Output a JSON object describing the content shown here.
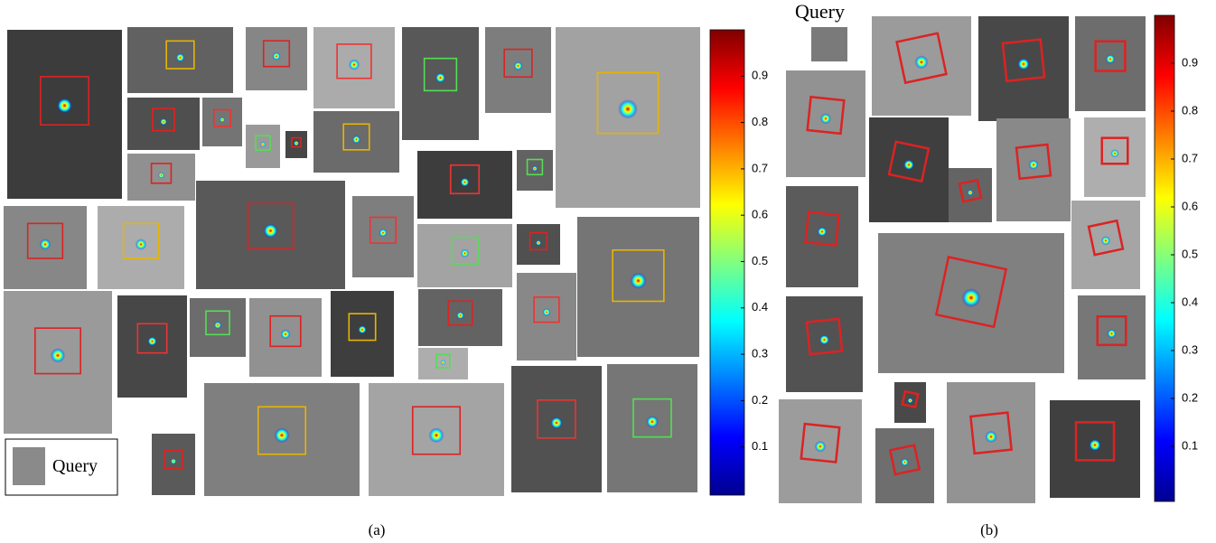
{
  "panels": [
    {
      "caption": "(a)",
      "query_label": "Query",
      "colorbar": {
        "lim": [
          0,
          1
        ],
        "ticks": [
          0.1,
          0.2,
          0.3,
          0.4,
          0.5,
          0.6,
          0.7,
          0.8,
          0.9
        ]
      }
    },
    {
      "caption": "(b)",
      "query_label": "Query",
      "colorbar": {
        "lim": [
          0,
          1
        ],
        "ticks": [
          0.1,
          0.2,
          0.3,
          0.4,
          0.5,
          0.6,
          0.7,
          0.8,
          0.9
        ]
      }
    }
  ]
}
